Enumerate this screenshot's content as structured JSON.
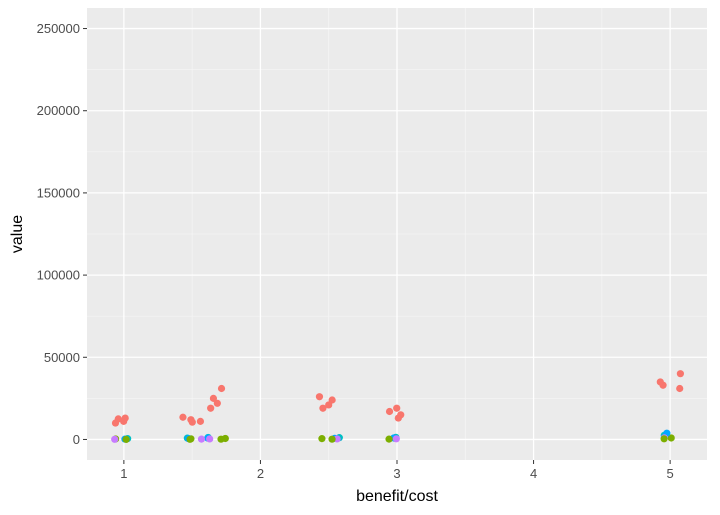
{
  "chart_data": {
    "type": "scatter",
    "title": "",
    "xlabel": "benefit/cost",
    "ylabel": "value",
    "xlim": [
      0.73,
      5.27
    ],
    "ylim": [
      -12500,
      262500
    ],
    "x_ticks": [
      1,
      2,
      3,
      4,
      5
    ],
    "x_tick_labels": [
      "1",
      "2",
      "3",
      "4",
      "5"
    ],
    "y_ticks": [
      0,
      50000,
      100000,
      150000,
      200000,
      250000
    ],
    "y_tick_labels": [
      "0",
      "50000",
      "100000",
      "150000",
      "200000",
      "250000"
    ],
    "grid": true,
    "legend": "none",
    "background": "#ebebeb",
    "gridline_color": "#ffffff",
    "jitter": true,
    "series": [
      {
        "color": "#f8766d",
        "points": [
          {
            "x": 1.0,
            "y": 11000
          },
          {
            "x": 1.0,
            "y": 13000
          },
          {
            "x": 1.0,
            "y": 10000
          },
          {
            "x": 1.0,
            "y": 12500
          },
          {
            "x": 1.5,
            "y": 12000
          },
          {
            "x": 1.5,
            "y": 10500
          },
          {
            "x": 1.5,
            "y": 13500
          },
          {
            "x": 1.5,
            "y": 11000
          },
          {
            "x": 1.67,
            "y": 22000
          },
          {
            "x": 1.67,
            "y": 25000
          },
          {
            "x": 1.67,
            "y": 19000
          },
          {
            "x": 1.67,
            "y": 31000
          },
          {
            "x": 2.5,
            "y": 24000
          },
          {
            "x": 2.5,
            "y": 26000
          },
          {
            "x": 2.5,
            "y": 21000
          },
          {
            "x": 2.5,
            "y": 19000
          },
          {
            "x": 3.0,
            "y": 15000
          },
          {
            "x": 3.0,
            "y": 17000
          },
          {
            "x": 3.0,
            "y": 13000
          },
          {
            "x": 3.0,
            "y": 19000
          },
          {
            "x": 5.0,
            "y": 33000
          },
          {
            "x": 5.0,
            "y": 35000
          },
          {
            "x": 5.0,
            "y": 31000
          },
          {
            "x": 5.0,
            "y": 40000
          }
        ]
      },
      {
        "color": "#7cae00",
        "points": [
          {
            "x": 1.0,
            "y": 300
          },
          {
            "x": 1.5,
            "y": 400
          },
          {
            "x": 1.67,
            "y": 600
          },
          {
            "x": 2.5,
            "y": 500
          },
          {
            "x": 3.0,
            "y": 700
          },
          {
            "x": 5.0,
            "y": 900
          }
        ]
      },
      {
        "color": "#00bfc4",
        "points": [
          {
            "x": 1.0,
            "y": 500
          },
          {
            "x": 1.5,
            "y": 800
          },
          {
            "x": 1.67,
            "y": 1200
          },
          {
            "x": 2.5,
            "y": 1100
          },
          {
            "x": 3.0,
            "y": 1300
          },
          {
            "x": 5.0,
            "y": 2500
          }
        ]
      },
      {
        "color": "#00a9ff",
        "points": [
          {
            "x": 1.0,
            "y": 200
          },
          {
            "x": 1.5,
            "y": 500
          },
          {
            "x": 1.67,
            "y": 800
          },
          {
            "x": 2.5,
            "y": 700
          },
          {
            "x": 3.0,
            "y": 900
          },
          {
            "x": 5.0,
            "y": 3800
          }
        ]
      },
      {
        "color": "#c77cff",
        "points": [
          {
            "x": 1.0,
            "y": 100
          },
          {
            "x": 1.5,
            "y": 200
          },
          {
            "x": 1.67,
            "y": 300
          },
          {
            "x": 2.5,
            "y": 300
          },
          {
            "x": 3.0,
            "y": 400
          },
          {
            "x": 5.0,
            "y": 1000
          }
        ]
      },
      {
        "color": "#7cae00",
        "points": [
          {
            "x": 1.0,
            "y": 50
          },
          {
            "x": 1.5,
            "y": 100
          },
          {
            "x": 1.67,
            "y": 150
          },
          {
            "x": 2.5,
            "y": 150
          },
          {
            "x": 3.0,
            "y": 200
          },
          {
            "x": 5.0,
            "y": 400
          }
        ]
      }
    ]
  }
}
